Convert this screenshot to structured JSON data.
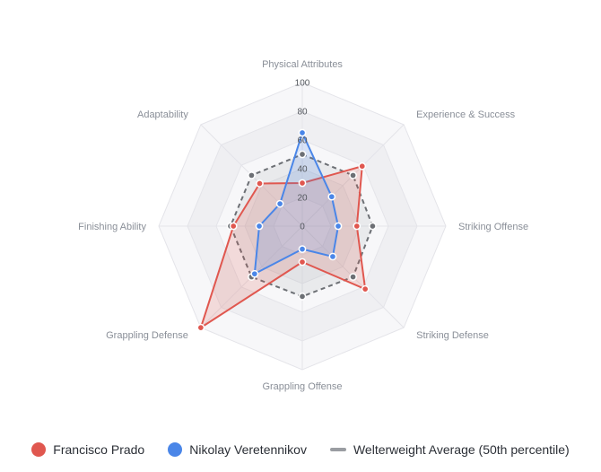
{
  "chart_data": {
    "type": "radar",
    "title": "",
    "axes": [
      "Physical Attributes",
      "Experience & Success",
      "Striking Offense",
      "Striking Defense",
      "Grappling Offense",
      "Grappling Defense",
      "Finishing Ability",
      "Adaptability"
    ],
    "range": [
      0,
      100
    ],
    "ticks": [
      "0",
      "20",
      "40",
      "60",
      "80",
      "100"
    ],
    "tick_values": [
      0,
      20,
      40,
      60,
      80,
      100
    ],
    "grid_levels": [
      20,
      40,
      60,
      80,
      100
    ],
    "grid": true,
    "legend_position": "bottom",
    "series": [
      {
        "name": "Francisco Prado",
        "color": "#e0574f",
        "dashed": false,
        "values": [
          30,
          59,
          38,
          62,
          25,
          100,
          48,
          42
        ]
      },
      {
        "name": "Nikolay Veretennikov",
        "color": "#4a86e8",
        "dashed": false,
        "values": [
          65,
          29,
          25,
          30,
          16,
          47,
          30,
          22
        ]
      },
      {
        "name": "Welterweight Average (50th percentile)",
        "color": "#6d7075",
        "dashed": true,
        "values": [
          50,
          50,
          49,
          50,
          49,
          50,
          50,
          50
        ]
      }
    ]
  },
  "legend": {
    "items": [
      "Francisco Prado",
      "Nikolay Veretennikov",
      "Welterweight Average (50th percentile)"
    ]
  }
}
